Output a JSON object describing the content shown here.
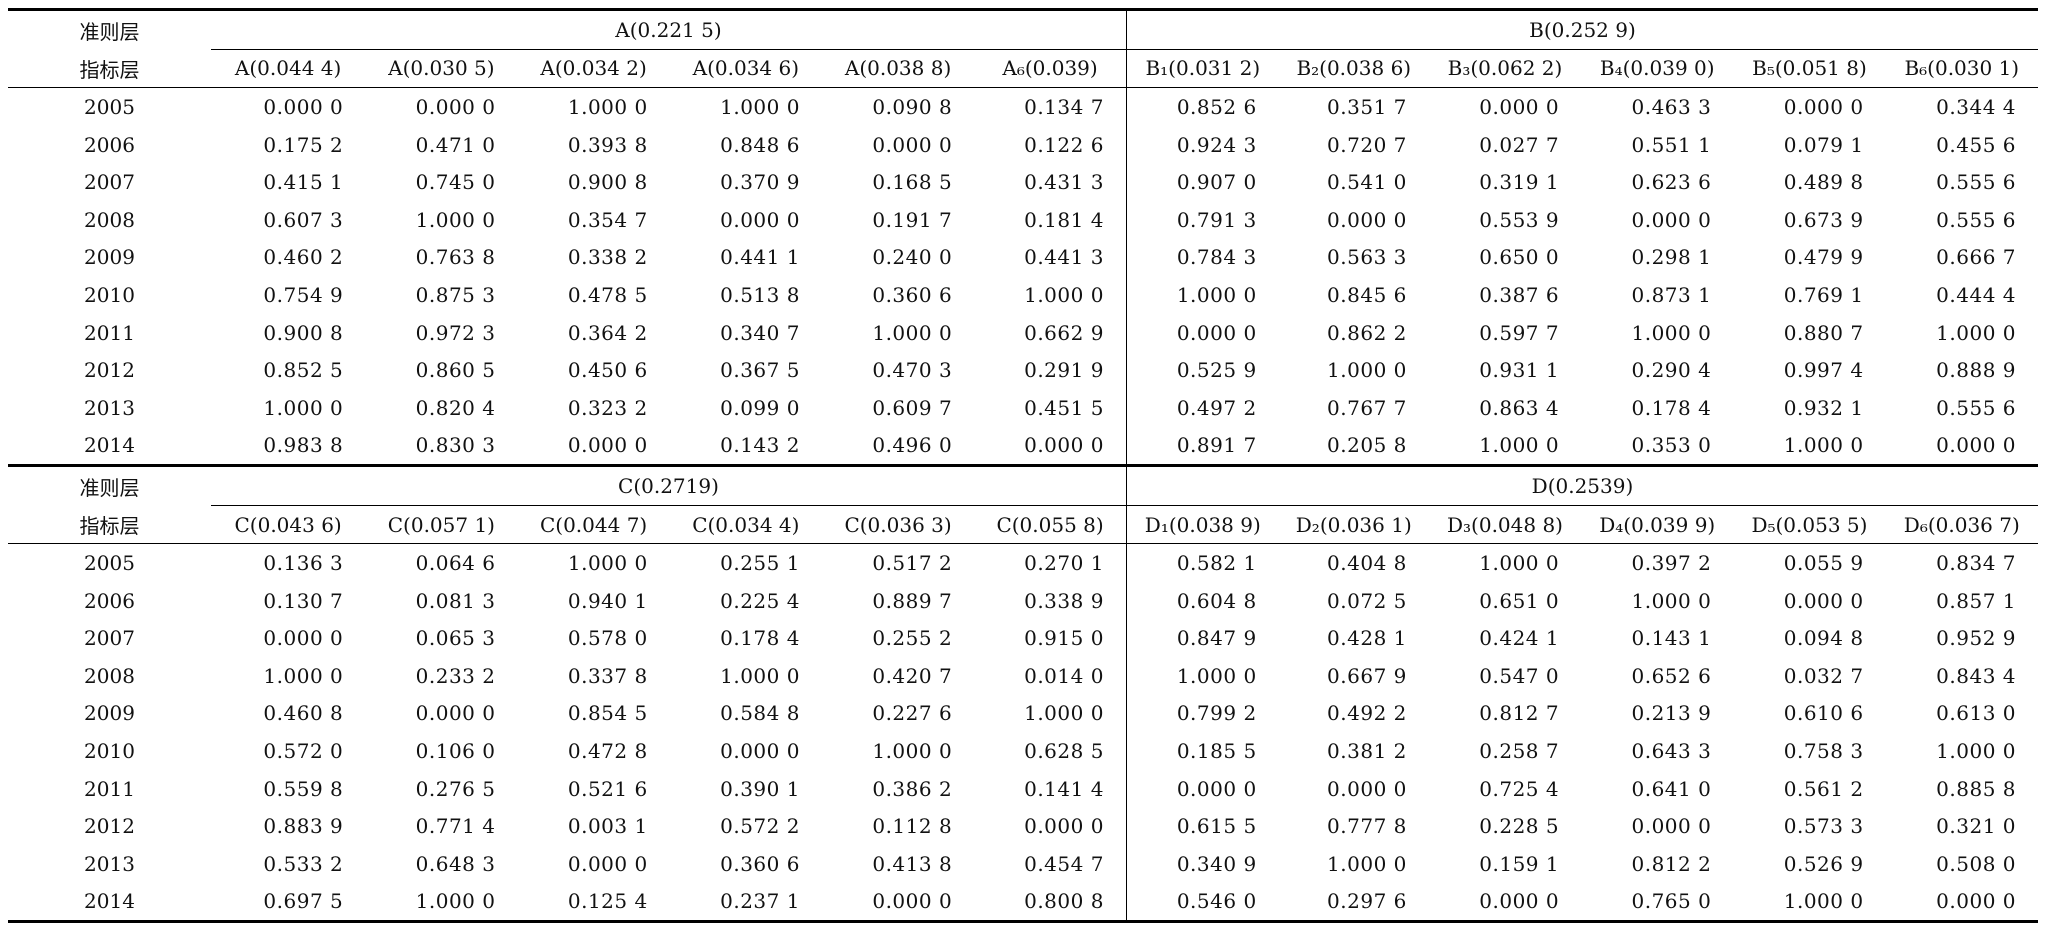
{
  "labels": {
    "criterion_layer": "准则层",
    "indicator_layer": "指标层"
  },
  "sections": [
    {
      "groups": [
        {
          "title": "A(0.221 5)",
          "indicators": [
            "A(0.044 4)",
            "A(0.030 5)",
            "A(0.034 2)",
            "A(0.034 6)",
            "A(0.038 8)",
            "A₆(0.039)"
          ]
        },
        {
          "title": "B(0.252 9)",
          "indicators": [
            "B₁(0.031 2)",
            "B₂(0.038 6)",
            "B₃(0.062 2)",
            "B₄(0.039 0)",
            "B₅(0.051 8)",
            "B₆(0.030 1)"
          ]
        }
      ],
      "rows": [
        {
          "year": "2005",
          "values": [
            "0.000 0",
            "0.000 0",
            "1.000 0",
            "1.000 0",
            "0.090 8",
            "0.134 7",
            "0.852 6",
            "0.351 7",
            "0.000 0",
            "0.463 3",
            "0.000 0",
            "0.344 4"
          ]
        },
        {
          "year": "2006",
          "values": [
            "0.175 2",
            "0.471 0",
            "0.393 8",
            "0.848 6",
            "0.000 0",
            "0.122 6",
            "0.924 3",
            "0.720 7",
            "0.027 7",
            "0.551 1",
            "0.079 1",
            "0.455 6"
          ]
        },
        {
          "year": "2007",
          "values": [
            "0.415 1",
            "0.745 0",
            "0.900 8",
            "0.370 9",
            "0.168 5",
            "0.431 3",
            "0.907 0",
            "0.541 0",
            "0.319 1",
            "0.623 6",
            "0.489 8",
            "0.555 6"
          ]
        },
        {
          "year": "2008",
          "values": [
            "0.607 3",
            "1.000 0",
            "0.354 7",
            "0.000 0",
            "0.191 7",
            "0.181 4",
            "0.791 3",
            "0.000 0",
            "0.553 9",
            "0.000 0",
            "0.673 9",
            "0.555 6"
          ]
        },
        {
          "year": "2009",
          "values": [
            "0.460 2",
            "0.763 8",
            "0.338 2",
            "0.441 1",
            "0.240 0",
            "0.441 3",
            "0.784 3",
            "0.563 3",
            "0.650 0",
            "0.298 1",
            "0.479 9",
            "0.666 7"
          ]
        },
        {
          "year": "2010",
          "values": [
            "0.754 9",
            "0.875 3",
            "0.478 5",
            "0.513 8",
            "0.360 6",
            "1.000 0",
            "1.000 0",
            "0.845 6",
            "0.387 6",
            "0.873 1",
            "0.769 1",
            "0.444 4"
          ]
        },
        {
          "year": "2011",
          "values": [
            "0.900 8",
            "0.972 3",
            "0.364 2",
            "0.340 7",
            "1.000 0",
            "0.662 9",
            "0.000 0",
            "0.862 2",
            "0.597 7",
            "1.000 0",
            "0.880 7",
            "1.000 0"
          ]
        },
        {
          "year": "2012",
          "values": [
            "0.852 5",
            "0.860 5",
            "0.450 6",
            "0.367 5",
            "0.470 3",
            "0.291 9",
            "0.525 9",
            "1.000 0",
            "0.931 1",
            "0.290 4",
            "0.997 4",
            "0.888 9"
          ]
        },
        {
          "year": "2013",
          "values": [
            "1.000 0",
            "0.820 4",
            "0.323 2",
            "0.099 0",
            "0.609 7",
            "0.451 5",
            "0.497 2",
            "0.767 7",
            "0.863 4",
            "0.178 4",
            "0.932 1",
            "0.555 6"
          ]
        },
        {
          "year": "2014",
          "values": [
            "0.983 8",
            "0.830 3",
            "0.000 0",
            "0.143 2",
            "0.496 0",
            "0.000 0",
            "0.891 7",
            "0.205 8",
            "1.000 0",
            "0.353 0",
            "1.000 0",
            "0.000 0"
          ]
        }
      ]
    },
    {
      "groups": [
        {
          "title": "C(0.2719)",
          "indicators": [
            "C(0.043 6)",
            "C(0.057 1)",
            "C(0.044 7)",
            "C(0.034 4)",
            "C(0.036 3)",
            "C(0.055 8)"
          ]
        },
        {
          "title": "D(0.2539)",
          "indicators": [
            "D₁(0.038 9)",
            "D₂(0.036 1)",
            "D₃(0.048 8)",
            "D₄(0.039 9)",
            "D₅(0.053 5)",
            "D₆(0.036 7)"
          ]
        }
      ],
      "rows": [
        {
          "year": "2005",
          "values": [
            "0.136 3",
            "0.064 6",
            "1.000 0",
            "0.255 1",
            "0.517 2",
            "0.270 1",
            "0.582 1",
            "0.404 8",
            "1.000 0",
            "0.397 2",
            "0.055 9",
            "0.834 7"
          ]
        },
        {
          "year": "2006",
          "values": [
            "0.130 7",
            "0.081 3",
            "0.940 1",
            "0.225 4",
            "0.889 7",
            "0.338 9",
            "0.604 8",
            "0.072 5",
            "0.651 0",
            "1.000 0",
            "0.000 0",
            "0.857 1"
          ]
        },
        {
          "year": "2007",
          "values": [
            "0.000 0",
            "0.065 3",
            "0.578 0",
            "0.178 4",
            "0.255 2",
            "0.915 0",
            "0.847 9",
            "0.428 1",
            "0.424 1",
            "0.143 1",
            "0.094 8",
            "0.952 9"
          ]
        },
        {
          "year": "2008",
          "values": [
            "1.000 0",
            "0.233 2",
            "0.337 8",
            "1.000 0",
            "0.420 7",
            "0.014 0",
            "1.000 0",
            "0.667 9",
            "0.547 0",
            "0.652 6",
            "0.032 7",
            "0.843 4"
          ]
        },
        {
          "year": "2009",
          "values": [
            "0.460 8",
            "0.000 0",
            "0.854 5",
            "0.584 8",
            "0.227 6",
            "1.000 0",
            "0.799 2",
            "0.492 2",
            "0.812 7",
            "0.213 9",
            "0.610 6",
            "0.613 0"
          ]
        },
        {
          "year": "2010",
          "values": [
            "0.572 0",
            "0.106 0",
            "0.472 8",
            "0.000 0",
            "1.000 0",
            "0.628 5",
            "0.185 5",
            "0.381 2",
            "0.258 7",
            "0.643 3",
            "0.758 3",
            "1.000 0"
          ]
        },
        {
          "year": "2011",
          "values": [
            "0.559 8",
            "0.276 5",
            "0.521 6",
            "0.390 1",
            "0.386 2",
            "0.141 4",
            "0.000 0",
            "0.000 0",
            "0.725 4",
            "0.641 0",
            "0.561 2",
            "0.885 8"
          ]
        },
        {
          "year": "2012",
          "values": [
            "0.883 9",
            "0.771 4",
            "0.003 1",
            "0.572 2",
            "0.112 8",
            "0.000 0",
            "0.615 5",
            "0.777 8",
            "0.228 5",
            "0.000 0",
            "0.573 3",
            "0.321 0"
          ]
        },
        {
          "year": "2013",
          "values": [
            "0.533 2",
            "0.648 3",
            "0.000 0",
            "0.360 6",
            "0.413 8",
            "0.454 7",
            "0.340 9",
            "1.000 0",
            "0.159 1",
            "0.812 2",
            "0.526 9",
            "0.508 0"
          ]
        },
        {
          "year": "2014",
          "values": [
            "0.697 5",
            "1.000 0",
            "0.125 4",
            "0.237 1",
            "0.000 0",
            "0.800 8",
            "0.546 0",
            "0.297 6",
            "0.000 0",
            "0.765 0",
            "1.000 0",
            "0.000 0"
          ]
        }
      ]
    }
  ]
}
